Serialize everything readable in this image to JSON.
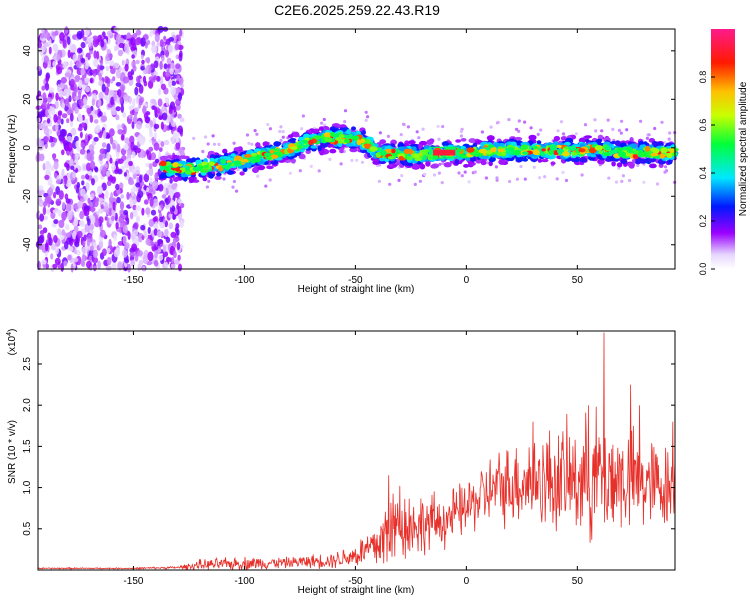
{
  "title": "C2E6.2025.259.22.43.R19",
  "colors": {
    "signal": "#e8302a",
    "frame": "#000000"
  },
  "spectrogram": {
    "chart_data": {
      "type": "heatmap",
      "xlabel": "Height of straight line (km)",
      "ylabel": "Frequency (Hz)",
      "xlim": [
        -193,
        94
      ],
      "ylim": [
        -50,
        49
      ],
      "x_ticks": [
        -150,
        -100,
        -50,
        0,
        50
      ],
      "y_ticks": [
        -40,
        -20,
        0,
        20,
        40
      ],
      "tick_labels_x": [
        "-150",
        "-100",
        "-50",
        "0",
        "50"
      ],
      "tick_labels_y": [
        "-40",
        "-20",
        "0",
        "20",
        "40"
      ],
      "noise_region_x": [
        -193,
        -128
      ],
      "ridge_center": {
        "x": [
          -135,
          -125,
          -110,
          -100,
          -90,
          -80,
          -75,
          -70,
          -60,
          -50,
          -45,
          -40,
          -30,
          -20,
          -10,
          0,
          10,
          30,
          50,
          60,
          70,
          80,
          94
        ],
        "y": [
          -8,
          -9,
          -7,
          -5,
          -3,
          -1,
          1,
          3,
          4,
          4,
          2,
          -2,
          -3,
          -3,
          -2,
          -2,
          -1,
          -1,
          -1,
          -1,
          -2,
          -2,
          -2
        ]
      },
      "strongest_segment_x": [
        -15,
        -5
      ],
      "colorbar": {
        "label": "Normalized spectral amplitude",
        "range": [
          0.0,
          1.0
        ],
        "ticks": [
          0.0,
          0.2,
          0.4,
          0.6,
          0.8
        ],
        "tick_labels": [
          "0.0",
          "0.2",
          "0.4",
          "0.6",
          "0.8"
        ]
      }
    }
  },
  "snr": {
    "chart_data": {
      "type": "line",
      "xlabel": "Height of straight line (km)",
      "ylabel": "SNR (10 * v/v)",
      "multiplier_label": "(x10",
      "multiplier_exp": "4",
      "xlim": [
        -193,
        94
      ],
      "ylim": [
        0,
        2.9
      ],
      "x_ticks": [
        -150,
        -100,
        -50,
        0,
        50
      ],
      "y_ticks": [
        0.5,
        1.0,
        1.5,
        2.0,
        2.5
      ],
      "tick_labels_x": [
        "-150",
        "-100",
        "-50",
        "0",
        "50"
      ],
      "tick_labels_y": [
        "0.5",
        "1.0",
        "1.5",
        "2.0",
        "2.5"
      ],
      "series": [
        {
          "envelope_x": [
            -193,
            -150,
            -130,
            -120,
            -100,
            -80,
            -60,
            -50,
            -40,
            -35,
            -30,
            -20,
            -10,
            0,
            10,
            20,
            30,
            40,
            50,
            60,
            70,
            80,
            94
          ],
          "mean_y": [
            0.02,
            0.02,
            0.03,
            0.06,
            0.08,
            0.09,
            0.12,
            0.18,
            0.3,
            0.45,
            0.55,
            0.55,
            0.6,
            0.75,
            0.95,
            1.05,
            1.1,
            1.1,
            1.1,
            1.15,
            1.1,
            1.05,
            1.0
          ],
          "amp_y": [
            0.01,
            0.01,
            0.02,
            0.08,
            0.1,
            0.08,
            0.12,
            0.18,
            0.4,
            0.7,
            0.55,
            0.45,
            0.4,
            0.4,
            0.5,
            0.6,
            0.7,
            0.8,
            0.8,
            1.0,
            0.8,
            0.7,
            0.6
          ],
          "peaks": [
            [
              -35,
              1.15
            ],
            [
              -30,
              1.02
            ],
            [
              30,
              1.8
            ],
            [
              55,
              2.0
            ],
            [
              62,
              2.88
            ],
            [
              74,
              2.25
            ],
            [
              78,
              2.0
            ],
            [
              93,
              1.8
            ]
          ]
        }
      ]
    }
  }
}
